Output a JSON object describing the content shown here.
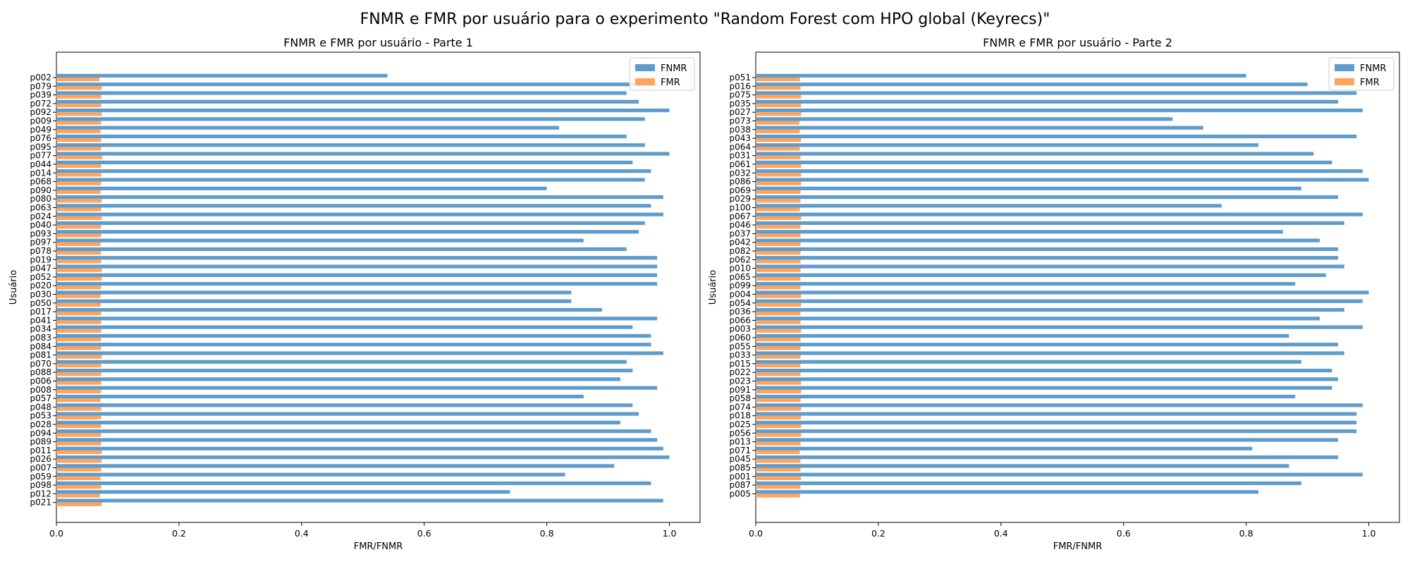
{
  "figure": {
    "suptitle": "FNMR e FMR por usuário para o experimento \"Random Forest com HPO global (Keyrecs)\""
  },
  "colors": {
    "FNMR": "#5f9ccb",
    "FMR": "#ffa45c"
  },
  "chart_data": [
    {
      "type": "bar",
      "orientation": "horizontal",
      "title": "FNMR e FMR por usuário - Parte 1",
      "xlabel": "FMR/FNMR",
      "ylabel": "Usuário",
      "xlim": [
        0,
        1.05
      ],
      "xticks": [
        "0.0",
        "0.2",
        "0.4",
        "0.6",
        "0.8",
        "1.0"
      ],
      "grid": false,
      "legend": "top-right",
      "categories": [
        "p002",
        "p079",
        "p039",
        "p072",
        "p092",
        "p009",
        "p049",
        "p076",
        "p095",
        "p077",
        "p044",
        "p014",
        "p068",
        "p090",
        "p080",
        "p063",
        "p024",
        "p040",
        "p093",
        "p097",
        "p078",
        "p019",
        "p047",
        "p052",
        "p020",
        "p030",
        "p050",
        "p017",
        "p041",
        "p034",
        "p083",
        "p084",
        "p081",
        "p070",
        "p088",
        "p006",
        "p008",
        "p057",
        "p048",
        "p053",
        "p028",
        "p094",
        "p089",
        "p011",
        "p026",
        "p007",
        "p059",
        "p098",
        "p012",
        "p021"
      ],
      "series": [
        {
          "name": "FNMR",
          "values": [
            0.54,
            0.98,
            0.93,
            0.95,
            1.0,
            0.96,
            0.82,
            0.93,
            0.96,
            1.0,
            0.94,
            0.97,
            0.96,
            0.8,
            0.99,
            0.97,
            0.99,
            0.96,
            0.95,
            0.86,
            0.93,
            0.98,
            0.98,
            0.98,
            0.98,
            0.84,
            0.84,
            0.89,
            0.98,
            0.94,
            0.97,
            0.97,
            0.99,
            0.93,
            0.94,
            0.92,
            0.98,
            0.86,
            0.94,
            0.95,
            0.92,
            0.97,
            0.98,
            0.99,
            1.0,
            0.91,
            0.83,
            0.97,
            0.74,
            0.99
          ]
        },
        {
          "name": "FMR",
          "values": [
            0.07,
            0.074,
            0.073,
            0.073,
            0.074,
            0.073,
            0.072,
            0.073,
            0.073,
            0.075,
            0.073,
            0.073,
            0.073,
            0.072,
            0.074,
            0.073,
            0.074,
            0.073,
            0.073,
            0.072,
            0.073,
            0.073,
            0.074,
            0.074,
            0.073,
            0.072,
            0.072,
            0.073,
            0.073,
            0.073,
            0.073,
            0.073,
            0.074,
            0.073,
            0.073,
            0.073,
            0.073,
            0.072,
            0.073,
            0.073,
            0.073,
            0.073,
            0.073,
            0.074,
            0.074,
            0.073,
            0.072,
            0.073,
            0.071,
            0.074
          ]
        }
      ]
    },
    {
      "type": "bar",
      "orientation": "horizontal",
      "title": "FNMR e FMR por usuário - Parte 2",
      "xlabel": "FMR/FNMR",
      "ylabel": "Usuário",
      "xlim": [
        0,
        1.05
      ],
      "xticks": [
        "0.0",
        "0.2",
        "0.4",
        "0.6",
        "0.8",
        "1.0"
      ],
      "grid": false,
      "legend": "top-right",
      "categories": [
        "p051",
        "p016",
        "p075",
        "p035",
        "p027",
        "p073",
        "p038",
        "p043",
        "p064",
        "p031",
        "p061",
        "p032",
        "p086",
        "p069",
        "p029",
        "p100",
        "p067",
        "p046",
        "p037",
        "p042",
        "p082",
        "p062",
        "p010",
        "p065",
        "p099",
        "p004",
        "p054",
        "p036",
        "p066",
        "p003",
        "p060",
        "p055",
        "p033",
        "p015",
        "p022",
        "p023",
        "p091",
        "p058",
        "p074",
        "p018",
        "p025",
        "p056",
        "p013",
        "p071",
        "p045",
        "p085",
        "p001",
        "p087",
        "p005"
      ],
      "series": [
        {
          "name": "FNMR",
          "values": [
            0.8,
            0.9,
            0.98,
            0.95,
            0.99,
            0.68,
            0.73,
            0.98,
            0.82,
            0.91,
            0.94,
            0.99,
            1.0,
            0.89,
            0.95,
            0.76,
            0.99,
            0.96,
            0.86,
            0.92,
            0.95,
            0.95,
            0.96,
            0.93,
            0.88,
            1.0,
            0.99,
            0.96,
            0.92,
            0.99,
            0.87,
            0.95,
            0.96,
            0.89,
            0.94,
            0.95,
            0.94,
            0.88,
            0.99,
            0.98,
            0.98,
            0.98,
            0.95,
            0.81,
            0.95,
            0.87,
            0.99,
            0.89,
            0.82
          ]
        },
        {
          "name": "FMR",
          "values": [
            0.072,
            0.073,
            0.074,
            0.074,
            0.074,
            0.071,
            0.072,
            0.074,
            0.072,
            0.073,
            0.074,
            0.074,
            0.074,
            0.073,
            0.073,
            0.072,
            0.074,
            0.073,
            0.073,
            0.073,
            0.073,
            0.073,
            0.073,
            0.073,
            0.073,
            0.074,
            0.074,
            0.073,
            0.073,
            0.074,
            0.073,
            0.073,
            0.073,
            0.073,
            0.073,
            0.074,
            0.074,
            0.073,
            0.074,
            0.074,
            0.074,
            0.074,
            0.073,
            0.072,
            0.073,
            0.073,
            0.074,
            0.073,
            0.072
          ]
        }
      ]
    }
  ]
}
